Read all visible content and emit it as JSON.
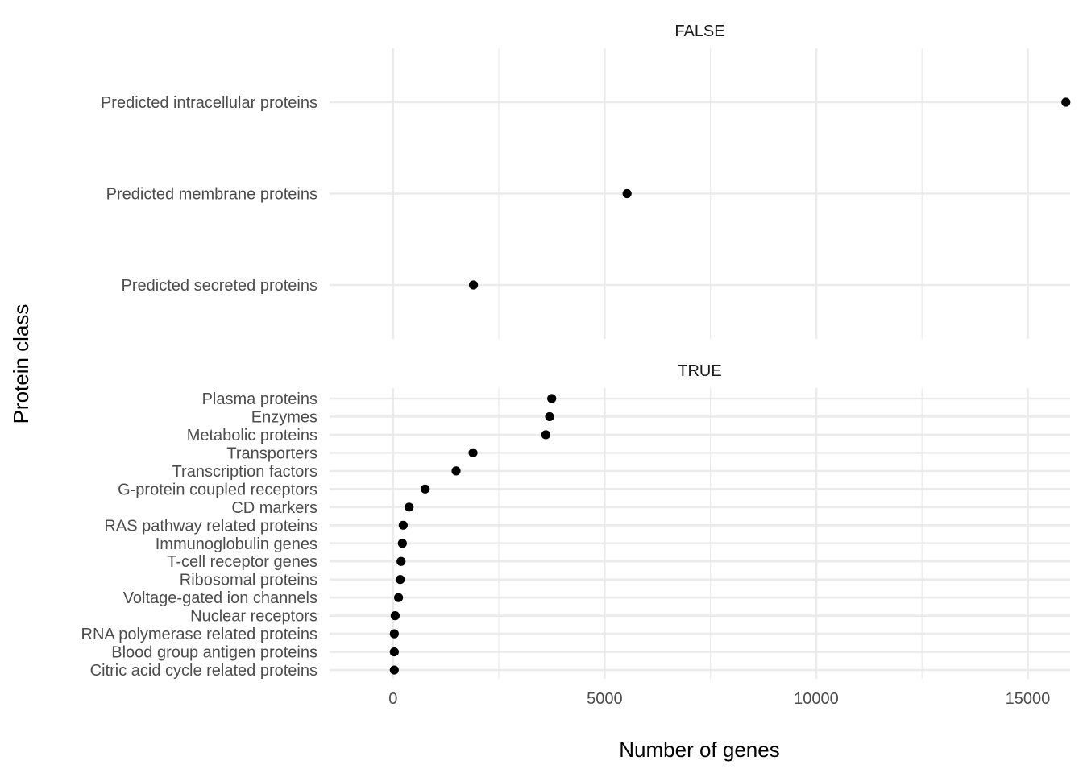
{
  "chart_data": {
    "type": "scatter",
    "xlabel": "Number of genes",
    "ylabel": "Protein class",
    "xlim": [
      -1500,
      16000
    ],
    "x_ticks": [
      0,
      5000,
      10000,
      15000
    ],
    "x_tick_labels": [
      "0",
      "5000",
      "10000",
      "15000"
    ],
    "grid": true,
    "point_color": "#000000",
    "panels": [
      {
        "strip": "FALSE",
        "categories": [
          "Predicted intracellular proteins",
          "Predicted membrane proteins",
          "Predicted secreted proteins"
        ],
        "values": [
          15900,
          5530,
          1900
        ]
      },
      {
        "strip": "TRUE",
        "categories": [
          "Plasma proteins",
          "Enzymes",
          "Metabolic proteins",
          "Transporters",
          "Transcription factors",
          "G-protein coupled receptors",
          "CD markers",
          "RAS pathway related proteins",
          "Immunoglobulin genes",
          "T-cell receptor genes",
          "Ribosomal proteins",
          "Voltage-gated ion channels",
          "Nuclear receptors",
          "RNA polymerase related proteins",
          "Blood group antigen proteins",
          "Citric acid cycle related proteins"
        ],
        "values": [
          3750,
          3700,
          3610,
          1890,
          1490,
          760,
          380,
          240,
          220,
          190,
          170,
          130,
          50,
          30,
          30,
          30
        ]
      }
    ]
  }
}
